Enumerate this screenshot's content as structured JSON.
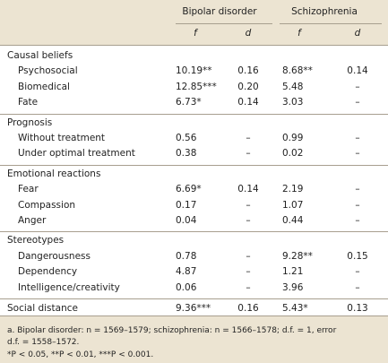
{
  "header": {
    "bipolar": "Bipolar disorder",
    "schizophrenia": "Schizophrenia",
    "columns": [
      "f",
      "d",
      "f",
      "d"
    ]
  },
  "sections": [
    {
      "title": "Causal beliefs",
      "rows": [
        [
          "Psychosocial",
          "10.19**",
          "0.16",
          "8.68**",
          "0.14"
        ],
        [
          "Biomedical",
          "12.85***",
          "0.20",
          "5.48",
          "–"
        ],
        [
          "Fate",
          "6.73*",
          "0.14",
          "3.03",
          "–"
        ]
      ]
    },
    {
      "title": "Prognosis",
      "rows": [
        [
          "Without treatment",
          "0.56",
          "–",
          "0.99",
          "–"
        ],
        [
          "Under optimal treatment",
          "0.38",
          "–",
          "0.02",
          "–"
        ]
      ]
    },
    {
      "title": "Emotional reactions",
      "rows": [
        [
          "Fear",
          "6.69*",
          "0.14",
          "2.19",
          "–"
        ],
        [
          "Compassion",
          "0.17",
          "–",
          "1.07",
          "–"
        ],
        [
          "Anger",
          "0.04",
          "–",
          "0.44",
          "–"
        ]
      ]
    },
    {
      "title": "Stereotypes",
      "rows": [
        [
          "Dangerousness",
          "0.78",
          "–",
          "9.28**",
          "0.15"
        ],
        [
          "Dependency",
          "4.87",
          "–",
          "1.21",
          "–"
        ],
        [
          "Intelligence/creativity",
          "0.06",
          "–",
          "3.96",
          "–"
        ]
      ]
    }
  ],
  "summary_row": [
    "Social distance",
    "9.36***",
    "0.16",
    "5.43*",
    "0.13"
  ],
  "footnotes": [
    "a. Bipolar disorder: n = 1569–1579; schizophrenia: n = 1566–1578; d.f. = 1, error",
    "d.f. = 1558–1572.",
    "*P < 0.05, **P < 0.01, ***P < 0.001."
  ]
}
